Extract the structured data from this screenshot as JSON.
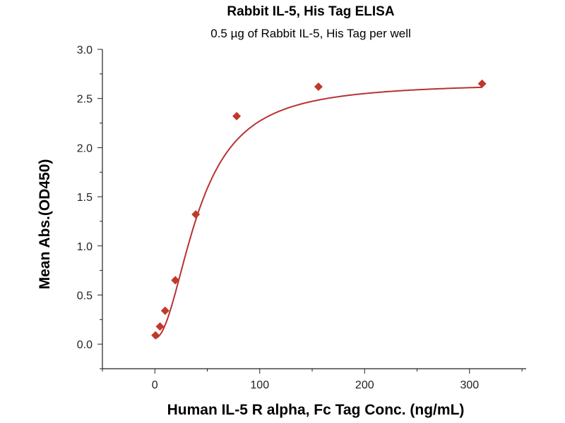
{
  "chart_data": {
    "type": "scatter",
    "title": "Rabbit IL-5, His Tag ELISA",
    "subtitle": "0.5 µg of Rabbit IL-5, His Tag per well",
    "xlabel": "Human IL-5 R alpha, Fc Tag Conc. (ng/mL)",
    "ylabel": "Mean Abs.(OD450)",
    "xlim": [
      -50,
      354
    ],
    "ylim": [
      -0.25,
      3.0
    ],
    "xticks": [
      0,
      100,
      200,
      300
    ],
    "xtick_labels": [
      "0",
      "100",
      "200",
      "300"
    ],
    "yticks": [
      0.0,
      0.5,
      1.0,
      1.5,
      2.0,
      2.5,
      3.0
    ],
    "ytick_labels": [
      "0.0",
      "0.5",
      "1.0",
      "1.5",
      "2.0",
      "2.5",
      "3.0"
    ],
    "grid": false,
    "series": [
      {
        "name": "Mean Abs.",
        "x": [
          0.6,
          4.9,
          9.8,
          19.5,
          39,
          78,
          156,
          312
        ],
        "y": [
          0.09,
          0.18,
          0.34,
          0.65,
          1.32,
          2.32,
          2.62,
          2.65
        ],
        "color": "#c0392b",
        "marker": "diamond",
        "fit": "4PL curve"
      }
    ]
  }
}
